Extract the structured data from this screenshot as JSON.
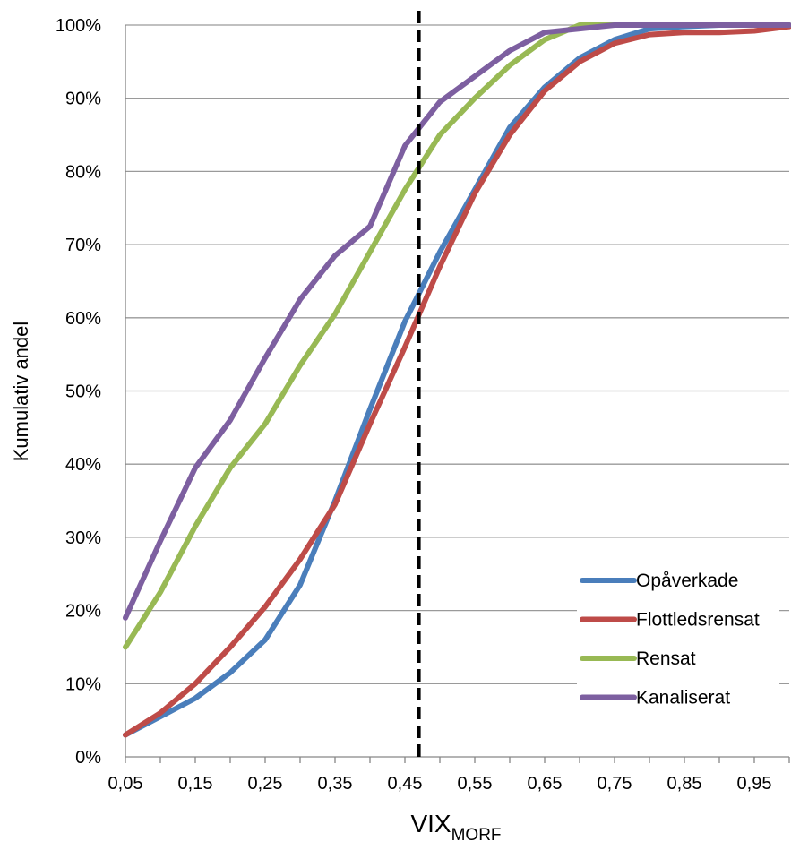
{
  "chart_data": {
    "type": "line",
    "title": "",
    "xlabel": "VIX",
    "xlabel_subscript": "MORF",
    "ylabel": "Kumulativ andel",
    "x": [
      0.05,
      0.1,
      0.15,
      0.2,
      0.25,
      0.3,
      0.35,
      0.4,
      0.45,
      0.5,
      0.55,
      0.6,
      0.65,
      0.7,
      0.75,
      0.8,
      0.85,
      0.9,
      0.95,
      1.0
    ],
    "x_tick_labels": [
      "0,05",
      "0,15",
      "0,25",
      "0,35",
      "0,45",
      "0,55",
      "0,65",
      "0,75",
      "0,85",
      "0,95"
    ],
    "y_tick_labels": [
      "0%",
      "10%",
      "20%",
      "30%",
      "40%",
      "50%",
      "60%",
      "70%",
      "80%",
      "90%",
      "100%"
    ],
    "xlim": [
      0.05,
      1.0
    ],
    "ylim": [
      0,
      100
    ],
    "grid": "horizontal",
    "legend_position": "bottom-right",
    "reference_line": {
      "x": 0.47,
      "style": "dashed"
    },
    "series": [
      {
        "name": "Opåverkade",
        "color": "#4a7ebb",
        "values": [
          3,
          5.5,
          8,
          11.5,
          16,
          23.5,
          35,
          47.5,
          59.5,
          69,
          77.5,
          86,
          91.5,
          95.5,
          98,
          99.5,
          99.8,
          100,
          100,
          100
        ]
      },
      {
        "name": "Flottledsrensat",
        "color": "#be4b48",
        "values": [
          3,
          6,
          10,
          15,
          20.5,
          27,
          34.5,
          45.5,
          56,
          67,
          77,
          85,
          91,
          95,
          97.5,
          98.7,
          99,
          99,
          99.2,
          99.8
        ]
      },
      {
        "name": "Rensat",
        "color": "#98b954",
        "values": [
          15,
          22.5,
          31.5,
          39.5,
          45.5,
          53.5,
          60.5,
          69,
          77.5,
          85,
          90,
          94.5,
          98,
          100,
          100,
          100,
          100,
          100,
          100,
          100
        ]
      },
      {
        "name": "Kanaliserat",
        "color": "#7d5fa0",
        "values": [
          19,
          29.5,
          39.5,
          46,
          54.5,
          62.5,
          68.5,
          72.5,
          83.5,
          89.5,
          93,
          96.5,
          99,
          99.5,
          100,
          100,
          100,
          100,
          100,
          100
        ]
      }
    ]
  }
}
